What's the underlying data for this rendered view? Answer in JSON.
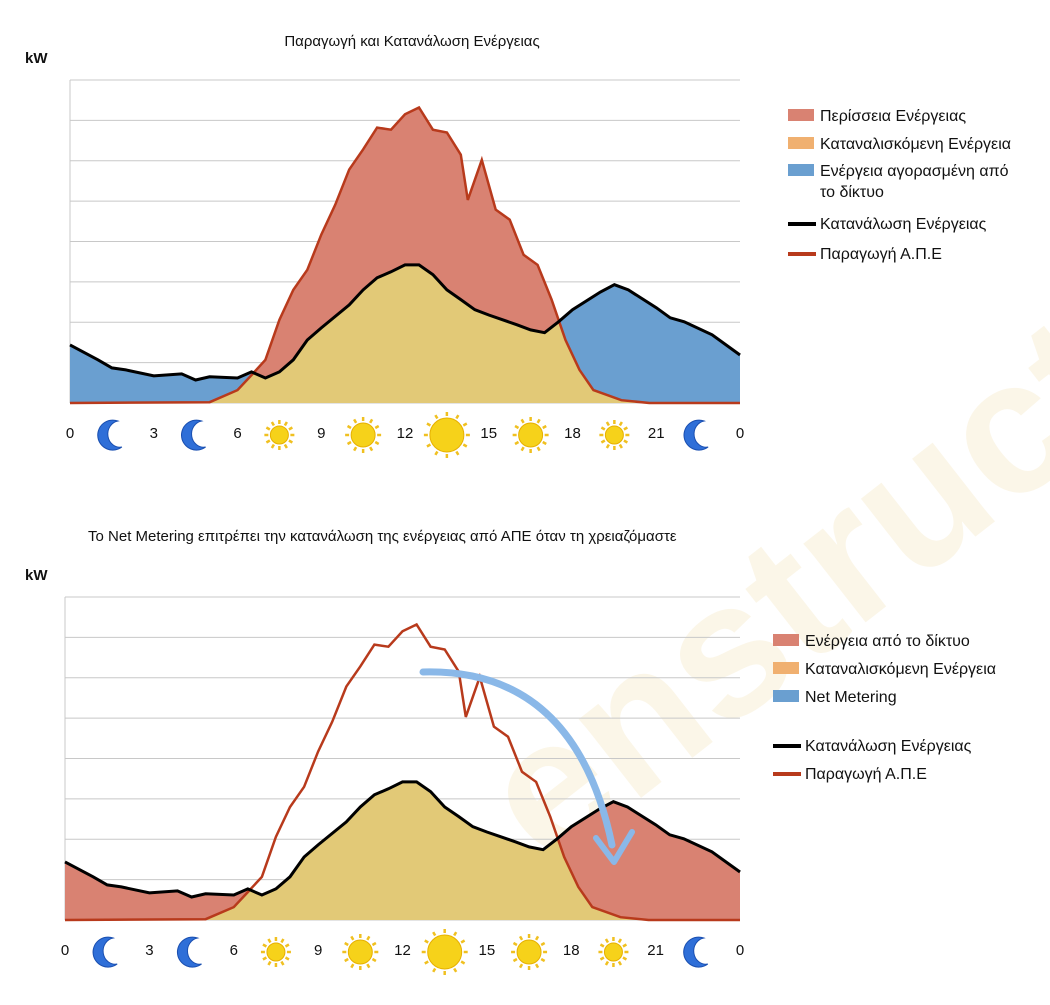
{
  "watermark": "enstruct engineering solutions",
  "colors": {
    "surplus": "#d98272",
    "consumed": "#e2c977",
    "grid_bought": "#6a9fd0",
    "consumption_line": "#000000",
    "production_line": "#b83a1c",
    "legend_consumed": "#f0b070",
    "arrow": "#8ab8e8"
  },
  "chart_data": [
    {
      "type": "area",
      "title": "Παραγωγή και Κατανάλωση Ενέργειας",
      "ylabel": "kW",
      "xlabel": "",
      "xlim": [
        0,
        24
      ],
      "ylim": [
        0,
        8
      ],
      "grid": true,
      "legend_position": "right",
      "x_ticks": [
        "0",
        "3",
        "6",
        "9",
        "12",
        "15",
        "18",
        "21",
        "0"
      ],
      "x_icons": [
        {
          "hour": 1.5,
          "icon": "moon-icon"
        },
        {
          "hour": 4.5,
          "icon": "moon-icon"
        },
        {
          "hour": 7.5,
          "icon": "sun-icon-small"
        },
        {
          "hour": 10.5,
          "icon": "sun-icon-medium"
        },
        {
          "hour": 13.5,
          "icon": "sun-icon-large"
        },
        {
          "hour": 16.5,
          "icon": "sun-icon-medium"
        },
        {
          "hour": 19.5,
          "icon": "sun-icon-small"
        },
        {
          "hour": 22.5,
          "icon": "moon-icon"
        }
      ],
      "legend": [
        {
          "label": "Περίσσεια Ενέργειας",
          "kind": "area",
          "color": "#d98272"
        },
        {
          "label": "Καταναλισκόμενη Ενέργεια",
          "kind": "area",
          "color": "#f0b070"
        },
        {
          "label": "Ενέργεια αγορασμένη από",
          "label2": "το δίκτυο",
          "kind": "area",
          "color": "#6a9fd0"
        },
        {
          "label": "Κατανάλωση Ενέργειας",
          "kind": "line",
          "color": "#000000"
        },
        {
          "label": "Παραγωγή Α.Π.Ε",
          "kind": "line",
          "color": "#b83a1c"
        }
      ],
      "series": [
        {
          "name": "Κατανάλωση Ενέργειας",
          "x": [
            0,
            1,
            1.5,
            2,
            3,
            4,
            4.5,
            5,
            6,
            6.5,
            7,
            7.5,
            8,
            8.5,
            9,
            10,
            10.5,
            11,
            11.5,
            12,
            12.5,
            13,
            13.5,
            14,
            14.5,
            15,
            15.5,
            16,
            16.5,
            17,
            17.5,
            18,
            19,
            19.5,
            20,
            21,
            21.5,
            22,
            23,
            24
          ],
          "y": [
            1.44,
            1.07,
            0.87,
            0.82,
            0.67,
            0.72,
            0.57,
            0.65,
            0.62,
            0.77,
            0.62,
            0.77,
            1.07,
            1.56,
            1.86,
            2.43,
            2.8,
            3.1,
            3.25,
            3.42,
            3.42,
            3.18,
            2.8,
            2.56,
            2.31,
            2.18,
            2.06,
            1.94,
            1.81,
            1.74,
            2.01,
            2.31,
            2.75,
            2.93,
            2.8,
            2.36,
            2.11,
            2.01,
            1.69,
            1.19
          ]
        },
        {
          "name": "Παραγωγή Α.Π.Ε",
          "x": [
            0,
            5,
            6,
            6.5,
            7,
            7.5,
            8,
            8.5,
            9,
            9.5,
            10,
            10.5,
            11,
            11.5,
            12,
            12.5,
            13,
            13.5,
            14,
            14.25,
            14.75,
            15.25,
            15.75,
            16.25,
            16.75,
            17.25,
            17.75,
            18.25,
            18.75,
            19.75,
            20.75,
            24
          ],
          "y": [
            0,
            0.02,
            0.32,
            0.69,
            1.07,
            2.06,
            2.8,
            3.3,
            4.17,
            4.91,
            5.78,
            6.28,
            6.82,
            6.77,
            7.15,
            7.32,
            6.77,
            6.7,
            6.15,
            5.03,
            6.02,
            4.79,
            4.54,
            3.67,
            3.42,
            2.56,
            1.56,
            0.82,
            0.32,
            0.07,
            0,
            0
          ]
        }
      ]
    },
    {
      "type": "area",
      "title": "Το Net Metering επιτρέπει την κατανάλωση της ενέργειας από ΑΠΕ όταν τη χρειαζόμαστε",
      "ylabel": "kW",
      "xlabel": "",
      "xlim": [
        0,
        24
      ],
      "ylim": [
        0,
        8
      ],
      "grid": true,
      "legend_position": "right",
      "x_ticks": [
        "0",
        "3",
        "6",
        "9",
        "12",
        "15",
        "18",
        "21",
        "0"
      ],
      "annotation": {
        "type": "curved-arrow",
        "from_hour": 13,
        "to_hour": 20,
        "color": "#8ab8e8"
      },
      "legend": [
        {
          "label": "Ενέργεια από το δίκτυο",
          "kind": "area",
          "color": "#d98272"
        },
        {
          "label": "Καταναλισκόμενη Ενέργεια",
          "kind": "area",
          "color": "#f0b070"
        },
        {
          "label": "Net Metering",
          "kind": "area",
          "color": "#6a9fd0"
        },
        {
          "label": "Κατανάλωση Ενέργειας",
          "kind": "line",
          "color": "#000000"
        },
        {
          "label": "Παραγωγή Α.Π.Ε",
          "kind": "line",
          "color": "#b83a1c"
        }
      ]
    }
  ]
}
